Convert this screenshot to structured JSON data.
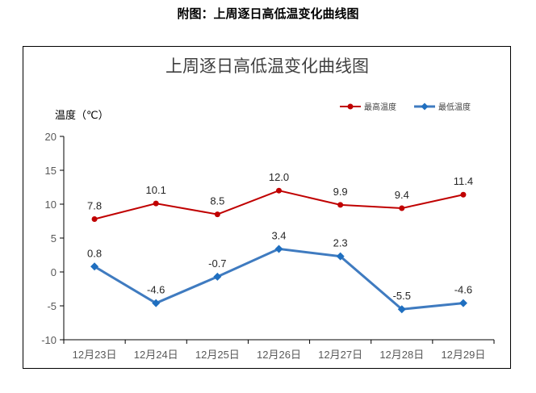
{
  "caption": "附图：上周逐日高低温变化曲线图",
  "chart_data": {
    "type": "line",
    "title": "上周逐日高低温变化曲线图",
    "xlabel": "",
    "ylabel": "温度（℃）",
    "ylim": [
      -10,
      20
    ],
    "yticks": [
      20,
      15,
      10,
      5,
      0,
      -5,
      -10
    ],
    "categories": [
      "12月23日",
      "12月24日",
      "12月25日",
      "12月26日",
      "12月27日",
      "12月28日",
      "12月29日"
    ],
    "legend_position": "top-right",
    "grid": false,
    "series": [
      {
        "name": "最高温度",
        "color": "#C00000",
        "marker": "circle",
        "values": [
          7.8,
          10.1,
          8.5,
          12.0,
          9.9,
          9.4,
          11.4
        ],
        "labels": [
          "7.8",
          "10.1",
          "8.5",
          "12.0",
          "9.9",
          "9.4",
          "11.4"
        ]
      },
      {
        "name": "最低温度",
        "color": "#3F7BC0",
        "marker": "diamond",
        "values": [
          0.8,
          -4.6,
          -0.7,
          3.4,
          2.3,
          -5.5,
          -4.6
        ],
        "labels": [
          "0.8",
          "-4.6",
          "-0.7",
          "3.4",
          "2.3",
          "-5.5",
          "-4.6"
        ]
      }
    ]
  }
}
